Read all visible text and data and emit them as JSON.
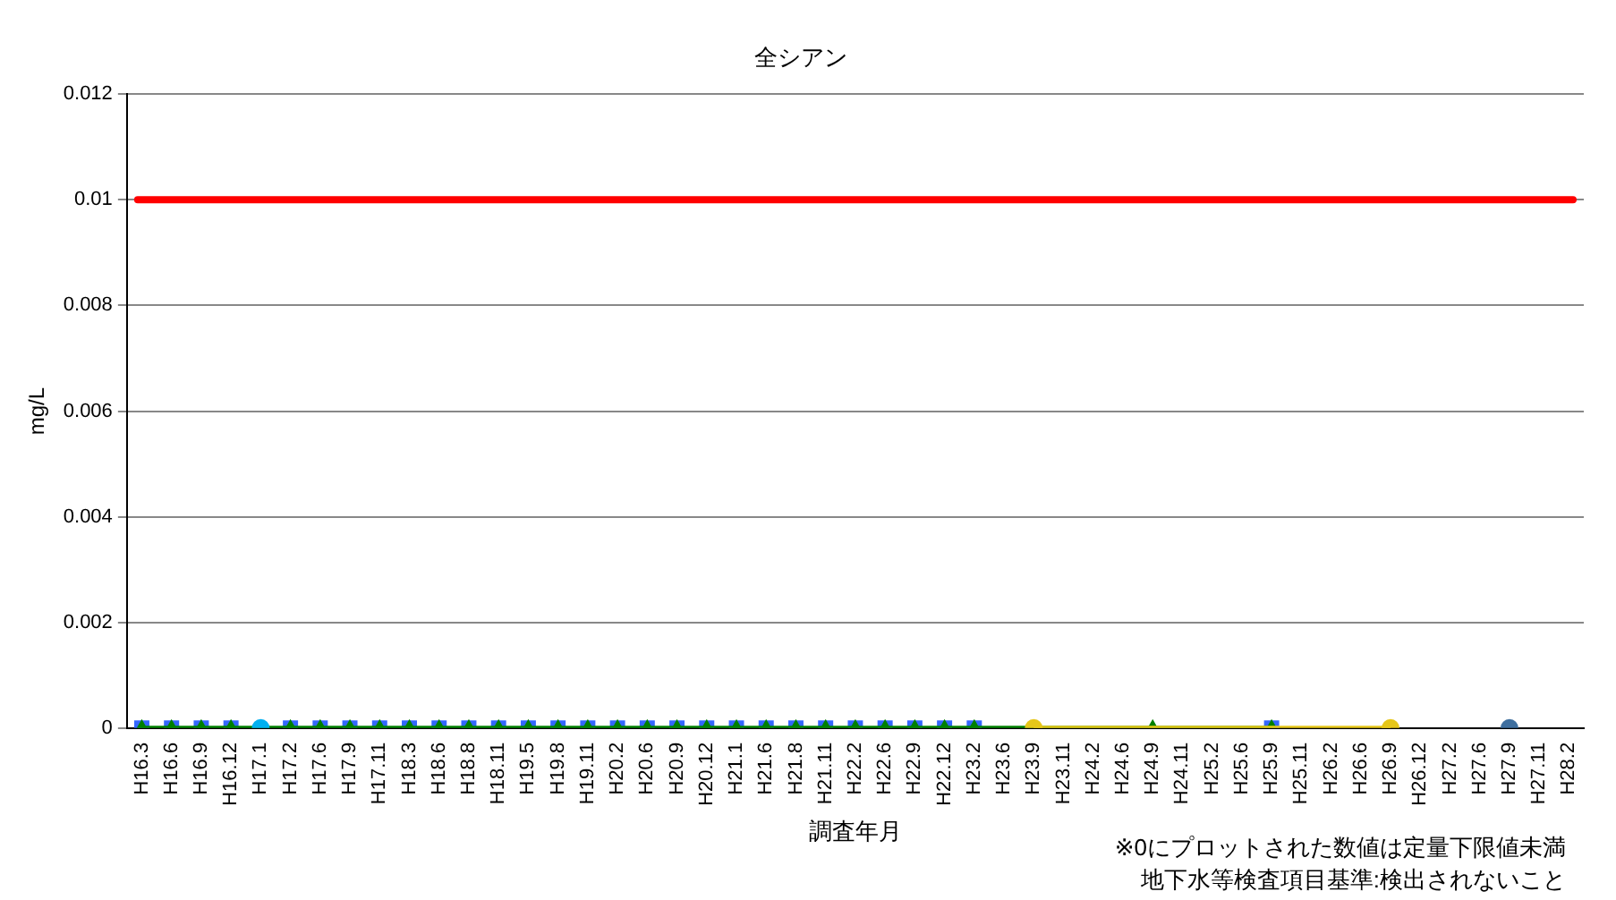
{
  "chart_data": {
    "type": "line",
    "title": "全シアン",
    "xlabel": "調査年月",
    "ylabel": "mg/L",
    "categories": [
      "H16.3",
      "H16.6",
      "H16.9",
      "H16.12",
      "H17.1",
      "H17.2",
      "H17.6",
      "H17.9",
      "H17.11",
      "H18.3",
      "H18.6",
      "H18.8",
      "H18.11",
      "H19.5",
      "H19.8",
      "H19.11",
      "H20.2",
      "H20.6",
      "H20.9",
      "H20.12",
      "H21.1",
      "H21.6",
      "H21.8",
      "H21.11",
      "H22.2",
      "H22.6",
      "H22.9",
      "H22.12",
      "H23.2",
      "H23.6",
      "H23.9",
      "H23.11",
      "H24.2",
      "H24.6",
      "H24.9",
      "H24.11",
      "H25.2",
      "H25.6",
      "H25.9",
      "H25.11",
      "H26.2",
      "H26.6",
      "H26.9",
      "H26.12",
      "H27.2",
      "H27.6",
      "H27.9",
      "H27.11",
      "H28.2"
    ],
    "series": [
      {
        "type": "scatter",
        "marker": "square",
        "color": "#3366ff",
        "values": [
          0,
          0,
          0,
          0,
          null,
          0,
          0,
          0,
          0,
          0,
          0,
          0,
          0,
          0,
          0,
          0,
          0,
          0,
          0,
          0,
          0,
          0,
          0,
          0,
          0,
          0,
          0,
          0,
          0,
          null,
          null,
          null,
          null,
          null,
          null,
          null,
          null,
          null,
          0,
          null,
          null,
          null,
          null,
          null,
          null,
          null,
          null,
          null,
          null
        ]
      },
      {
        "marker": "triangle",
        "color": "#008000",
        "values": [
          0,
          0,
          0,
          0,
          null,
          0,
          0,
          0,
          0,
          0,
          0,
          0,
          0,
          0,
          0,
          0,
          0,
          0,
          0,
          0,
          0,
          0,
          0,
          0,
          0,
          0,
          0,
          0,
          0,
          null,
          null,
          null,
          null,
          null,
          0,
          null,
          null,
          null,
          0,
          null,
          null,
          null,
          null,
          null,
          null,
          null,
          null,
          null,
          null
        ]
      },
      {
        "type": "scatter",
        "marker": "circle",
        "color": "#00b0f0",
        "values": [
          null,
          null,
          null,
          null,
          0,
          null,
          null,
          null,
          null,
          null,
          null,
          null,
          null,
          null,
          null,
          null,
          null,
          null,
          null,
          null,
          null,
          null,
          null,
          null,
          null,
          null,
          null,
          null,
          null,
          null,
          null,
          null,
          null,
          null,
          null,
          null,
          null,
          null,
          null,
          null,
          null,
          null,
          null,
          null,
          null,
          null,
          null,
          null,
          null
        ]
      },
      {
        "marker": "circle",
        "color": "#e6c619",
        "values": [
          null,
          null,
          null,
          null,
          null,
          null,
          null,
          null,
          null,
          null,
          null,
          null,
          null,
          null,
          null,
          null,
          null,
          null,
          null,
          null,
          null,
          null,
          null,
          null,
          null,
          null,
          null,
          null,
          null,
          null,
          0,
          null,
          null,
          null,
          null,
          null,
          null,
          null,
          null,
          null,
          null,
          null,
          0,
          null,
          null,
          null,
          null,
          null,
          null
        ]
      },
      {
        "type": "scatter",
        "marker": "circle",
        "color": "#3f6f9f",
        "values": [
          null,
          null,
          null,
          null,
          null,
          null,
          null,
          null,
          null,
          null,
          null,
          null,
          null,
          null,
          null,
          null,
          null,
          null,
          null,
          null,
          null,
          null,
          null,
          null,
          null,
          null,
          null,
          null,
          null,
          null,
          null,
          null,
          null,
          null,
          null,
          null,
          null,
          null,
          null,
          null,
          null,
          null,
          null,
          null,
          null,
          null,
          0,
          null,
          null
        ]
      }
    ],
    "ylim": [
      0,
      0.012
    ],
    "yticks": [
      0,
      0.002,
      0.004,
      0.006,
      0.008,
      0.01,
      0.012
    ],
    "grid": "y",
    "ref_lines": [
      {
        "axis": "y",
        "value": 0.01,
        "color": "#ff0000"
      }
    ],
    "annotations": [
      "※0にプロットされた数値は定量下限値未満",
      "地下水等検査項目基準:検出されないこと"
    ]
  }
}
